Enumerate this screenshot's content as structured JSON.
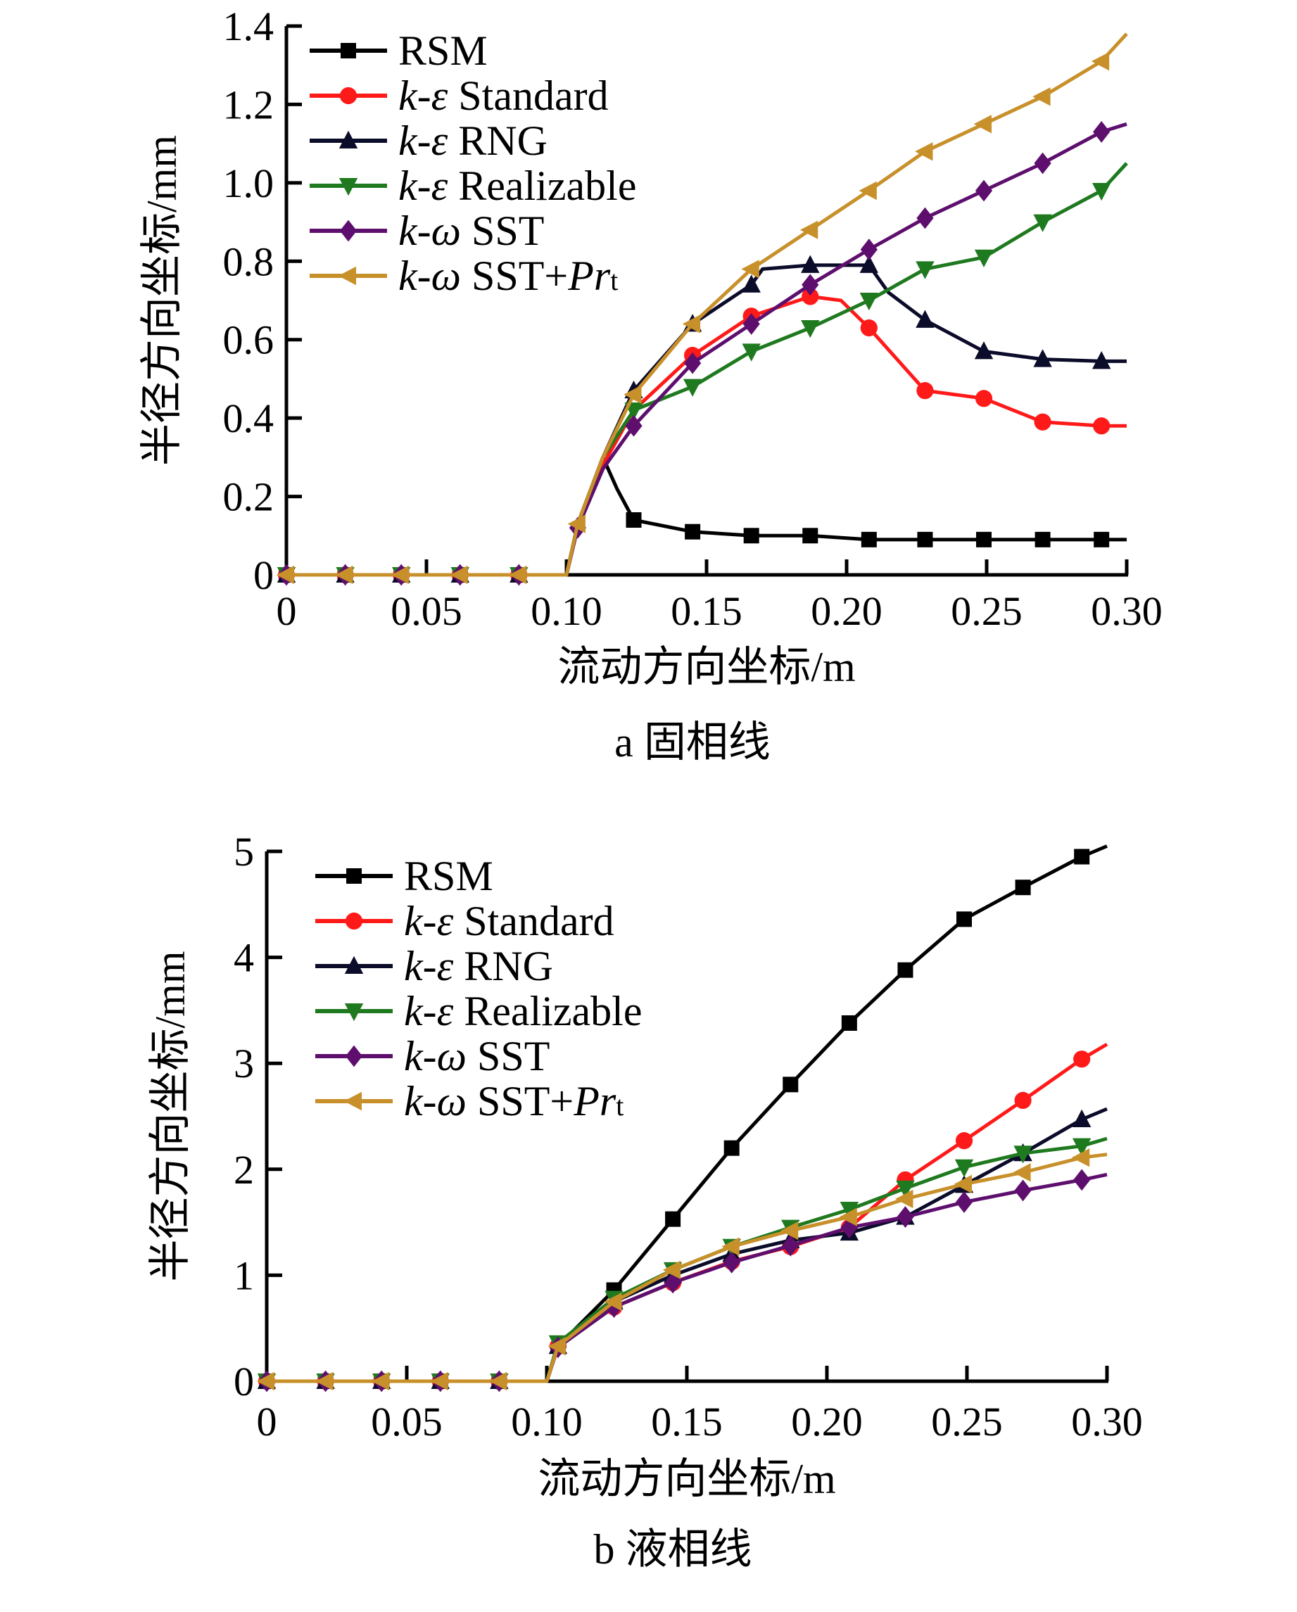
{
  "chart_data": [
    {
      "type": "line",
      "panel": "a",
      "caption_letter": "a",
      "caption_text": "固相线",
      "xlabel": "流动方向坐标/m",
      "ylabel": "半径方向坐标/mm",
      "xlim": [
        0,
        0.3
      ],
      "ylim": [
        0,
        1.4
      ],
      "xticks": [
        0,
        0.05,
        0.1,
        0.15,
        0.2,
        0.25,
        0.3
      ],
      "xtick_labels": [
        "0",
        "0.05",
        "0.10",
        "0.15",
        "0.20",
        "0.25",
        "0.30"
      ],
      "yticks": [
        0,
        0.2,
        0.4,
        0.6,
        0.8,
        1.0,
        1.2,
        1.4
      ],
      "ytick_labels": [
        "0",
        "0.2",
        "0.4",
        "0.6",
        "0.8",
        "1.0",
        "1.2",
        "1.4"
      ],
      "grid": false,
      "legend_position": "top-left",
      "series": [
        {
          "name": "RSM",
          "label_parts": [
            {
              "t": "RSM",
              "i": false
            }
          ],
          "color": "#000000",
          "marker": "square",
          "x": [
            0,
            0.021,
            0.041,
            0.062,
            0.083,
            0.1,
            0.104,
            0.113,
            0.118,
            0.124,
            0.145,
            0.166,
            0.187,
            0.208,
            0.228,
            0.249,
            0.27,
            0.291,
            0.3
          ],
          "y": [
            0,
            0,
            0,
            0,
            0,
            0,
            0.13,
            0.3,
            0.22,
            0.14,
            0.11,
            0.1,
            0.1,
            0.09,
            0.09,
            0.09,
            0.09,
            0.09,
            0.09
          ],
          "markers": [
            0,
            1,
            2,
            3,
            4,
            9,
            10,
            11,
            12,
            13,
            14,
            15,
            16,
            17
          ]
        },
        {
          "name": "k-ε Standard",
          "label_parts": [
            {
              "t": "k",
              "i": true
            },
            {
              "t": "-",
              "i": false
            },
            {
              "t": "ε",
              "i": true
            },
            {
              "t": " Standard",
              "i": false
            }
          ],
          "color": "#ff1a1a",
          "marker": "circle",
          "x": [
            0,
            0.021,
            0.041,
            0.062,
            0.083,
            0.1,
            0.104,
            0.113,
            0.124,
            0.145,
            0.166,
            0.187,
            0.198,
            0.208,
            0.228,
            0.249,
            0.27,
            0.291,
            0.3
          ],
          "y": [
            0,
            0,
            0,
            0,
            0,
            0,
            0.13,
            0.28,
            0.42,
            0.56,
            0.66,
            0.71,
            0.7,
            0.63,
            0.47,
            0.45,
            0.39,
            0.38,
            0.38
          ],
          "markers": [
            0,
            1,
            2,
            3,
            4,
            9,
            10,
            11,
            13,
            14,
            15,
            16,
            17
          ]
        },
        {
          "name": "k-ε RNG",
          "label_parts": [
            {
              "t": "k",
              "i": true
            },
            {
              "t": "-",
              "i": false
            },
            {
              "t": "ε",
              "i": true
            },
            {
              "t": " RNG",
              "i": false
            }
          ],
          "color": "#0b0b2a",
          "marker": "triangle-up",
          "x": [
            0,
            0.021,
            0.041,
            0.062,
            0.083,
            0.1,
            0.104,
            0.113,
            0.124,
            0.145,
            0.166,
            0.17,
            0.187,
            0.208,
            0.215,
            0.228,
            0.249,
            0.27,
            0.291,
            0.3
          ],
          "y": [
            0,
            0,
            0,
            0,
            0,
            0,
            0.13,
            0.3,
            0.47,
            0.64,
            0.74,
            0.78,
            0.79,
            0.79,
            0.72,
            0.65,
            0.57,
            0.55,
            0.545,
            0.545
          ],
          "markers": [
            0,
            1,
            2,
            3,
            4,
            8,
            9,
            10,
            12,
            13,
            15,
            16,
            17,
            18
          ]
        },
        {
          "name": "k-ε Realizable",
          "label_parts": [
            {
              "t": "k",
              "i": true
            },
            {
              "t": "-",
              "i": false
            },
            {
              "t": "ε",
              "i": true
            },
            {
              "t": " Realizable",
              "i": false
            }
          ],
          "color": "#1f7a1f",
          "marker": "triangle-down",
          "x": [
            0,
            0.021,
            0.041,
            0.062,
            0.083,
            0.1,
            0.104,
            0.113,
            0.124,
            0.145,
            0.166,
            0.187,
            0.208,
            0.228,
            0.249,
            0.27,
            0.291,
            0.3
          ],
          "y": [
            0,
            0,
            0,
            0,
            0,
            0,
            0.13,
            0.3,
            0.42,
            0.48,
            0.57,
            0.63,
            0.7,
            0.78,
            0.81,
            0.9,
            0.98,
            1.05
          ],
          "markers": [
            0,
            1,
            2,
            3,
            4,
            8,
            9,
            10,
            11,
            12,
            13,
            14,
            15,
            16
          ]
        },
        {
          "name": "k-ω SST",
          "label_parts": [
            {
              "t": "k",
              "i": true
            },
            {
              "t": "-",
              "i": false
            },
            {
              "t": "ω",
              "i": true
            },
            {
              "t": " SST",
              "i": false
            }
          ],
          "color": "#5e0f6e",
          "marker": "diamond",
          "x": [
            0,
            0.021,
            0.041,
            0.062,
            0.083,
            0.1,
            0.104,
            0.113,
            0.124,
            0.145,
            0.166,
            0.187,
            0.208,
            0.228,
            0.249,
            0.27,
            0.291,
            0.3
          ],
          "y": [
            0,
            0,
            0,
            0,
            0,
            0,
            0.12,
            0.27,
            0.38,
            0.54,
            0.64,
            0.74,
            0.83,
            0.91,
            0.98,
            1.05,
            1.13,
            1.15
          ],
          "markers": [
            0,
            1,
            2,
            3,
            4,
            6,
            8,
            9,
            10,
            11,
            12,
            13,
            14,
            15,
            16
          ]
        },
        {
          "name": "k-ω SST+Prt",
          "label_parts": [
            {
              "t": "k",
              "i": true
            },
            {
              "t": "-",
              "i": false
            },
            {
              "t": "ω",
              "i": true
            },
            {
              "t": " SST+",
              "i": false
            },
            {
              "t": "Pr",
              "i": true
            },
            {
              "t": "t",
              "i": false,
              "sub": true
            }
          ],
          "color": "#c8902a",
          "marker": "triangle-left",
          "x": [
            0,
            0.021,
            0.041,
            0.062,
            0.083,
            0.1,
            0.104,
            0.113,
            0.124,
            0.145,
            0.166,
            0.187,
            0.208,
            0.228,
            0.249,
            0.27,
            0.291,
            0.3
          ],
          "y": [
            0,
            0,
            0,
            0,
            0,
            0,
            0.13,
            0.3,
            0.46,
            0.64,
            0.78,
            0.88,
            0.98,
            1.08,
            1.15,
            1.22,
            1.31,
            1.38
          ],
          "markers": [
            0,
            1,
            2,
            3,
            4,
            6,
            8,
            9,
            10,
            11,
            12,
            13,
            14,
            15,
            16
          ]
        }
      ]
    },
    {
      "type": "line",
      "panel": "b",
      "caption_letter": "b",
      "caption_text": "液相线",
      "xlabel": "流动方向坐标/m",
      "ylabel": "半径方向坐标/mm",
      "xlim": [
        0,
        0.3
      ],
      "ylim": [
        0,
        5
      ],
      "xticks": [
        0,
        0.05,
        0.1,
        0.15,
        0.2,
        0.25,
        0.3
      ],
      "xtick_labels": [
        "0",
        "0.05",
        "0.10",
        "0.15",
        "0.20",
        "0.25",
        "0.30"
      ],
      "yticks": [
        0,
        1,
        2,
        3,
        4,
        5
      ],
      "ytick_labels": [
        "0",
        "1",
        "2",
        "3",
        "4",
        "5"
      ],
      "grid": false,
      "legend_position": "top-left",
      "series": [
        {
          "name": "RSM",
          "label_parts": [
            {
              "t": "RSM",
              "i": false
            }
          ],
          "color": "#000000",
          "marker": "square",
          "x": [
            0,
            0.021,
            0.041,
            0.062,
            0.083,
            0.1,
            0.104,
            0.124,
            0.145,
            0.166,
            0.187,
            0.208,
            0.228,
            0.249,
            0.27,
            0.291,
            0.3
          ],
          "y": [
            0,
            0,
            0,
            0,
            0,
            0,
            0.33,
            0.86,
            1.53,
            2.2,
            2.8,
            3.38,
            3.88,
            4.36,
            4.66,
            4.95,
            5.05
          ],
          "markers": [
            0,
            1,
            2,
            3,
            4,
            7,
            8,
            9,
            10,
            11,
            12,
            13,
            14,
            15
          ]
        },
        {
          "name": "k-ε Standard",
          "label_parts": [
            {
              "t": "k",
              "i": true
            },
            {
              "t": "-",
              "i": false
            },
            {
              "t": "ε",
              "i": true
            },
            {
              "t": " Standard",
              "i": false
            }
          ],
          "color": "#ff1a1a",
          "marker": "circle",
          "x": [
            0,
            0.021,
            0.041,
            0.062,
            0.083,
            0.1,
            0.104,
            0.124,
            0.145,
            0.166,
            0.187,
            0.208,
            0.228,
            0.249,
            0.27,
            0.291,
            0.3
          ],
          "y": [
            0,
            0,
            0,
            0,
            0,
            0,
            0.33,
            0.7,
            0.93,
            1.13,
            1.27,
            1.45,
            1.9,
            2.27,
            2.65,
            3.04,
            3.18
          ],
          "markers": [
            0,
            1,
            2,
            3,
            4,
            6,
            7,
            8,
            9,
            10,
            11,
            12,
            13,
            14,
            15
          ]
        },
        {
          "name": "k-ε RNG",
          "label_parts": [
            {
              "t": "k",
              "i": true
            },
            {
              "t": "-",
              "i": false
            },
            {
              "t": "ε",
              "i": true
            },
            {
              "t": " RNG",
              "i": false
            }
          ],
          "color": "#0b0b2a",
          "marker": "triangle-up",
          "x": [
            0,
            0.021,
            0.041,
            0.062,
            0.083,
            0.1,
            0.104,
            0.124,
            0.145,
            0.166,
            0.187,
            0.208,
            0.228,
            0.249,
            0.27,
            0.291,
            0.3
          ],
          "y": [
            0,
            0,
            0,
            0,
            0,
            0,
            0.33,
            0.75,
            1.0,
            1.2,
            1.33,
            1.4,
            1.55,
            1.85,
            2.15,
            2.47,
            2.57
          ],
          "markers": [
            0,
            1,
            2,
            3,
            4,
            6,
            7,
            8,
            9,
            10,
            11,
            12,
            13,
            14,
            15
          ]
        },
        {
          "name": "k-ε Realizable",
          "label_parts": [
            {
              "t": "k",
              "i": true
            },
            {
              "t": "-",
              "i": false
            },
            {
              "t": "ε",
              "i": true
            },
            {
              "t": " Realizable",
              "i": false
            }
          ],
          "color": "#1f7a1f",
          "marker": "triangle-down",
          "x": [
            0,
            0.021,
            0.041,
            0.062,
            0.083,
            0.1,
            0.104,
            0.124,
            0.145,
            0.166,
            0.187,
            0.208,
            0.228,
            0.249,
            0.27,
            0.291,
            0.3
          ],
          "y": [
            0,
            0,
            0,
            0,
            0,
            0,
            0.36,
            0.78,
            1.05,
            1.27,
            1.45,
            1.62,
            1.82,
            2.02,
            2.15,
            2.22,
            2.29
          ],
          "markers": [
            0,
            1,
            2,
            3,
            4,
            6,
            7,
            8,
            9,
            10,
            11,
            12,
            13,
            14,
            15
          ]
        },
        {
          "name": "k-ω SST",
          "label_parts": [
            {
              "t": "k",
              "i": true
            },
            {
              "t": "-",
              "i": false
            },
            {
              "t": "ω",
              "i": true
            },
            {
              "t": " SST",
              "i": false
            }
          ],
          "color": "#5e0f6e",
          "marker": "diamond",
          "x": [
            0,
            0.021,
            0.041,
            0.062,
            0.083,
            0.1,
            0.104,
            0.124,
            0.145,
            0.166,
            0.187,
            0.208,
            0.228,
            0.249,
            0.27,
            0.291,
            0.3
          ],
          "y": [
            0,
            0,
            0,
            0,
            0,
            0,
            0.32,
            0.7,
            0.93,
            1.12,
            1.28,
            1.45,
            1.55,
            1.69,
            1.8,
            1.9,
            1.95
          ],
          "markers": [
            0,
            1,
            2,
            3,
            4,
            6,
            7,
            8,
            9,
            10,
            11,
            12,
            13,
            14,
            15
          ]
        },
        {
          "name": "k-ω SST+Prt",
          "label_parts": [
            {
              "t": "k",
              "i": true
            },
            {
              "t": "-",
              "i": false
            },
            {
              "t": "ω",
              "i": true
            },
            {
              "t": " SST+",
              "i": false
            },
            {
              "t": "Pr",
              "i": true
            },
            {
              "t": "t",
              "i": false,
              "sub": true
            }
          ],
          "color": "#c8902a",
          "marker": "triangle-left",
          "x": [
            0,
            0.021,
            0.041,
            0.062,
            0.083,
            0.1,
            0.104,
            0.124,
            0.145,
            0.166,
            0.187,
            0.208,
            0.228,
            0.249,
            0.27,
            0.291,
            0.3
          ],
          "y": [
            0,
            0,
            0,
            0,
            0,
            0,
            0.33,
            0.75,
            1.05,
            1.27,
            1.42,
            1.55,
            1.72,
            1.86,
            1.97,
            2.11,
            2.14
          ],
          "markers": [
            0,
            1,
            2,
            3,
            4,
            6,
            7,
            8,
            9,
            10,
            11,
            12,
            13,
            14,
            15
          ]
        }
      ]
    }
  ]
}
